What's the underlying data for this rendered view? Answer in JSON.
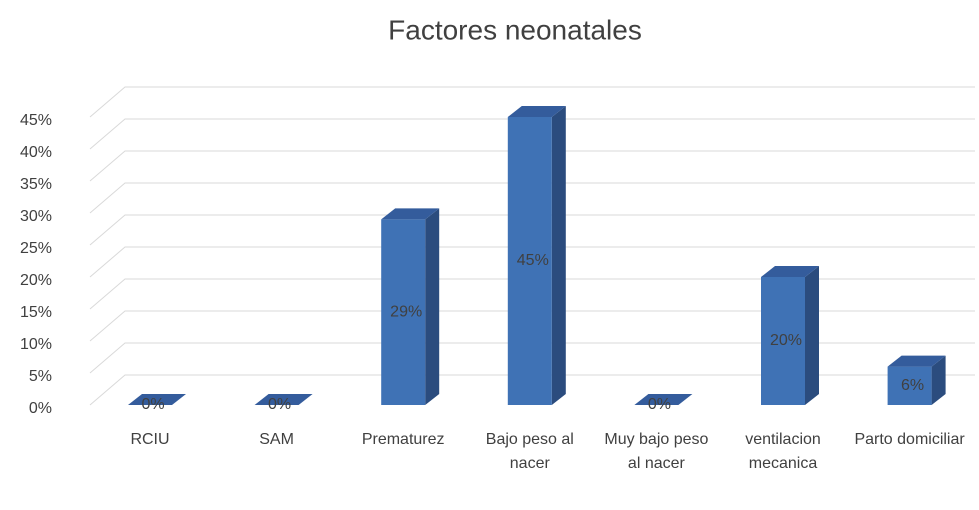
{
  "chart_data": {
    "type": "bar",
    "title": "Factores neonatales",
    "categories": [
      "RCIU",
      "SAM",
      "Prematurez",
      "Bajo peso al nacer",
      "Muy bajo peso al nacer",
      "ventilacion mecanica",
      "Parto domiciliar"
    ],
    "values": [
      0,
      0,
      29,
      45,
      0,
      20,
      6
    ],
    "value_labels": [
      "0%",
      "0%",
      "29%",
      "45%",
      "0%",
      "20%",
      "6%"
    ],
    "color": "#3f72b5",
    "ylim": [
      0,
      45
    ],
    "yticks": [
      {
        "value": 0,
        "label": "0%"
      },
      {
        "value": 5,
        "label": "5%"
      },
      {
        "value": 10,
        "label": "10%"
      },
      {
        "value": 15,
        "label": "15%"
      },
      {
        "value": 20,
        "label": "20%"
      },
      {
        "value": 25,
        "label": "25%"
      },
      {
        "value": 30,
        "label": "30%"
      },
      {
        "value": 35,
        "label": "35%"
      },
      {
        "value": 40,
        "label": "40%"
      },
      {
        "value": 45,
        "label": "45%"
      }
    ],
    "grid": true
  }
}
